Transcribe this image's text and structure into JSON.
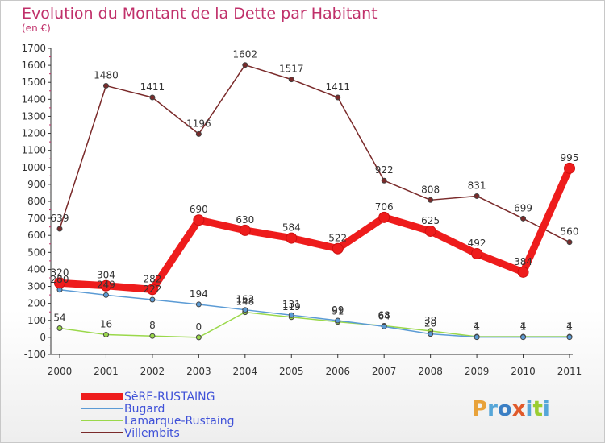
{
  "title": "Evolution du Montant de la Dette par Habitant",
  "subtitle": "(en €)",
  "logo": {
    "text": "Proxiti",
    "colors": [
      "#e8a23a",
      "#56a6d8",
      "#3b7fc4",
      "#e05a2b",
      "#56a6d8",
      "#9acd32",
      "#56a6d8"
    ]
  },
  "chart_data": {
    "type": "line",
    "x": [
      "2000",
      "2001",
      "2002",
      "2003",
      "2004",
      "2005",
      "2006",
      "2007",
      "2008",
      "2009",
      "2010",
      "2011"
    ],
    "ylim": [
      -100,
      1700
    ],
    "yticks": [
      -100,
      0,
      100,
      200,
      300,
      400,
      500,
      600,
      700,
      800,
      900,
      1000,
      1100,
      1200,
      1300,
      1400,
      1500,
      1600,
      1700
    ],
    "grid": false,
    "legend_position": "bottom-left",
    "series": [
      {
        "name": "Villembits",
        "color": "#7a2a2a",
        "values": [
          639,
          1480,
          1411,
          1196,
          1602,
          1517,
          1411,
          922,
          808,
          831,
          699,
          560
        ]
      },
      {
        "name": "Lamarque-Rustaing",
        "color": "#9ad84a",
        "values": [
          54,
          16,
          8,
          0,
          148,
          119,
          91,
          68,
          38,
          4,
          4,
          4
        ]
      },
      {
        "name": "Bugard",
        "color": "#5b9bd5",
        "values": [
          280,
          249,
          222,
          194,
          162,
          131,
          99,
          64,
          20,
          1,
          1,
          1
        ]
      },
      {
        "name": "SèRE-RUSTAING",
        "color": "#ee1c1c",
        "values": [
          320,
          304,
          282,
          690,
          630,
          584,
          522,
          706,
          625,
          492,
          384,
          995
        ]
      }
    ]
  }
}
